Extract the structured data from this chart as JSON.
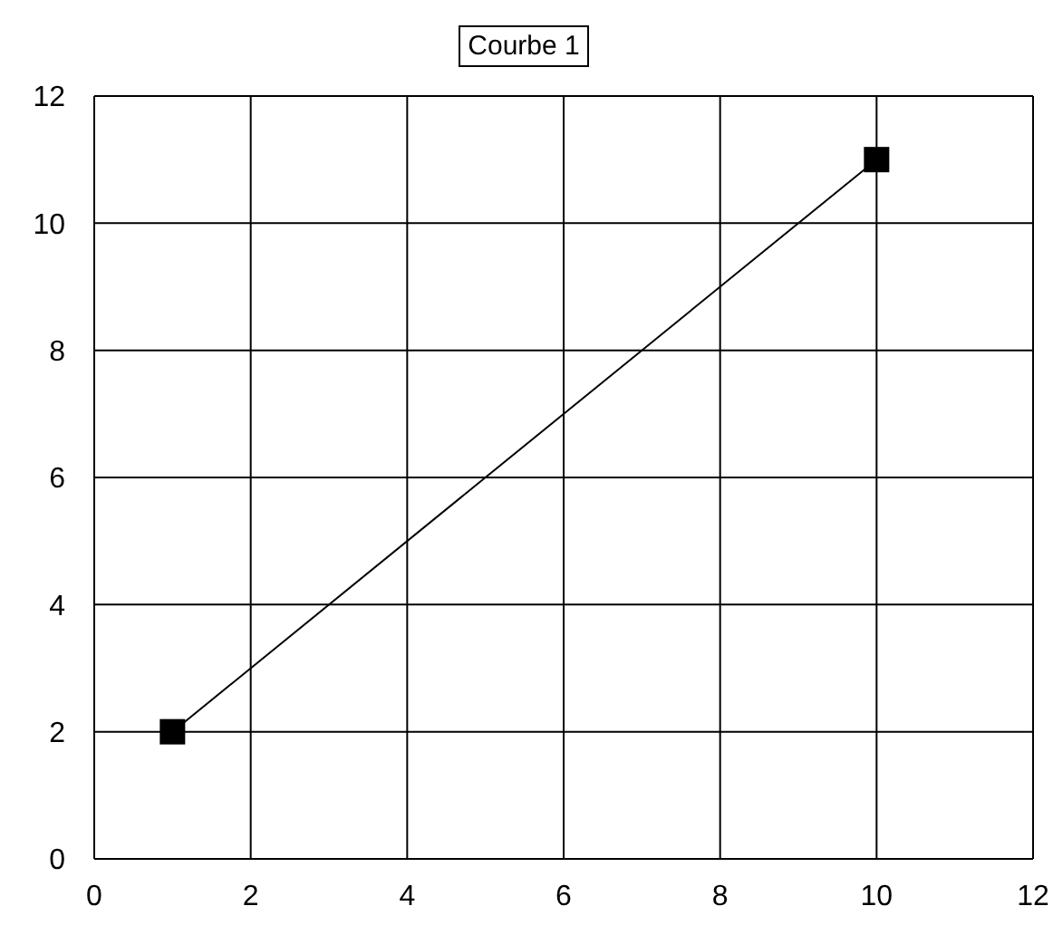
{
  "chart_data": {
    "type": "line",
    "x": [
      1,
      10
    ],
    "series": [
      {
        "name": "Courbe 1",
        "color": "#000000",
        "values": [
          2,
          11
        ]
      }
    ],
    "xlim": [
      0,
      12
    ],
    "xticks": [
      0,
      2,
      4,
      6,
      8,
      10,
      12
    ],
    "ylim": [
      0,
      12
    ],
    "yticks": [
      0,
      2,
      4,
      6,
      8,
      10,
      12
    ],
    "grid": true,
    "legend": "top",
    "marker": "square",
    "line_style": "solid"
  }
}
